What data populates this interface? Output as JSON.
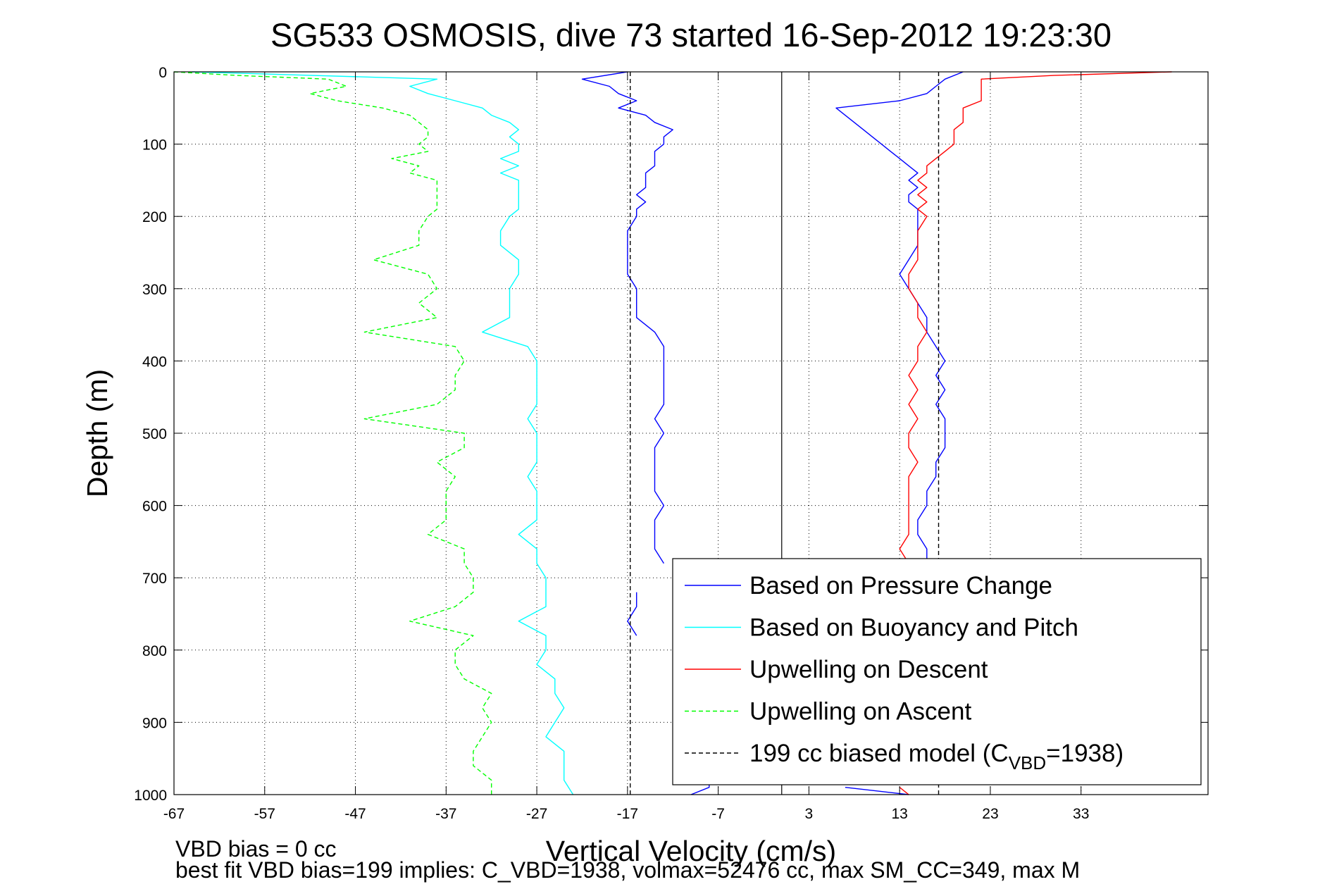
{
  "chart_data": {
    "type": "line",
    "title": "SG533 OSMOSIS, dive 73 started 16-Sep-2012 19:23:30",
    "xlabel": "Vertical Velocity (cm/s)",
    "ylabel": "Depth (m)",
    "xlim": [
      -67,
      47
    ],
    "ylim": [
      0,
      1000
    ],
    "y_reversed": true,
    "grid": true,
    "x_ticks": [
      "-67",
      "-57",
      "-47",
      "-37",
      "-27",
      "-17",
      "-7",
      "3",
      "13",
      "23",
      "33"
    ],
    "y_ticks": [
      "0",
      "100",
      "200",
      "300",
      "400",
      "500",
      "600",
      "700",
      "800",
      "900",
      "1000"
    ],
    "legend_position": "bottom-right",
    "series": [
      {
        "name": "Based on Pressure Change",
        "color": "#0000ff",
        "style": "solid",
        "segments": [
          {
            "depth": [
              0,
              10,
              20,
              30,
              40,
              50,
              60,
              70,
              80,
              90,
              100,
              110,
              120,
              130,
              140,
              150,
              160,
              170,
              180,
              190,
              200,
              220,
              240,
              260,
              280,
              300,
              320,
              340,
              360,
              380,
              400,
              420,
              440,
              460,
              480,
              500,
              520,
              540,
              560,
              580,
              600,
              620,
              640,
              660,
              680
            ],
            "value": [
              -17,
              -22,
              -19,
              -18,
              -16,
              -18,
              -15,
              -14,
              -12,
              -13,
              -13,
              -14,
              -14,
              -14,
              -15,
              -15,
              -15,
              -16,
              -15,
              -16,
              -16,
              -17,
              -17,
              -17,
              -17,
              -16,
              -16,
              -16,
              -14,
              -13,
              -13,
              -13,
              -13,
              -13,
              -14,
              -13,
              -14,
              -14,
              -14,
              -14,
              -13,
              -14,
              -14,
              -14,
              -13
            ]
          },
          {
            "depth": [
              720,
              740,
              760,
              780
            ],
            "value": [
              -16,
              -16,
              -17,
              -16
            ]
          },
          {
            "depth": [
              980,
              990,
              1000
            ],
            "value": [
              -8,
              -8,
              -10
            ]
          },
          {
            "depth": [
              0,
              10,
              20,
              30,
              40,
              50,
              60,
              70,
              80,
              90,
              100,
              110,
              120,
              130,
              140,
              150,
              160,
              170,
              180,
              190,
              200,
              220,
              240,
              260,
              280,
              300,
              320,
              340,
              360,
              380,
              400,
              420,
              440,
              460,
              480,
              500,
              520,
              540,
              560,
              580,
              600,
              620,
              640,
              660,
              680
            ],
            "value": [
              20,
              18,
              17,
              16,
              13,
              6,
              7,
              8,
              9,
              10,
              11,
              12,
              13,
              14,
              15,
              14,
              15,
              14,
              14,
              15,
              15,
              15,
              15,
              14,
              13,
              14,
              15,
              16,
              16,
              17,
              18,
              17,
              18,
              17,
              18,
              18,
              18,
              17,
              17,
              16,
              16,
              15,
              15,
              16,
              16
            ]
          },
          {
            "depth": [
              990,
              1000
            ],
            "value": [
              7,
              14
            ]
          }
        ]
      },
      {
        "name": "Based on Buoyancy and Pitch",
        "color": "#00ffff",
        "style": "solid",
        "segments": [
          {
            "depth": [
              0,
              10,
              20,
              30,
              40,
              50,
              60,
              70,
              80,
              90,
              100,
              110,
              120,
              130,
              140,
              150,
              160,
              170,
              180,
              190,
              200,
              220,
              240,
              260,
              280,
              300,
              320,
              340,
              360,
              380,
              400,
              420,
              440,
              460,
              480,
              500,
              520,
              540,
              560,
              580,
              600,
              620,
              640,
              660,
              680,
              700,
              720,
              740,
              760,
              780,
              800,
              820,
              840,
              860,
              880,
              900,
              920,
              940,
              960,
              980,
              1000
            ],
            "value": [
              -65,
              -38,
              -41,
              -39,
              -36,
              -33,
              -32,
              -30,
              -29,
              -30,
              -29,
              -29,
              -31,
              -29,
              -31,
              -29,
              -29,
              -29,
              -29,
              -29,
              -30,
              -31,
              -31,
              -29,
              -29,
              -30,
              -30,
              -30,
              -33,
              -28,
              -27,
              -27,
              -27,
              -27,
              -28,
              -27,
              -27,
              -27,
              -28,
              -27,
              -27,
              -27,
              -29,
              -27,
              -27,
              -26,
              -26,
              -26,
              -29,
              -26,
              -26,
              -27,
              -25,
              -25,
              -24,
              -25,
              -26,
              -24,
              -24,
              -24,
              -23
            ]
          }
        ]
      },
      {
        "name": "Upwelling on Descent",
        "color": "#ff0000",
        "style": "solid",
        "segments": [
          {
            "depth": [
              0,
              5,
              10,
              20,
              30,
              40,
              50,
              60,
              70,
              80,
              90,
              100,
              110,
              120,
              130,
              140,
              150,
              160,
              170,
              180,
              190,
              200,
              220,
              240,
              260,
              280,
              300,
              320,
              340,
              360,
              380,
              400,
              420,
              440,
              460,
              480,
              500,
              520,
              540,
              560,
              580,
              600,
              620,
              640,
              660,
              680
            ],
            "value": [
              43,
              30,
              22,
              22,
              22,
              22,
              20,
              20,
              20,
              19,
              19,
              19,
              18,
              17,
              16,
              16,
              15,
              16,
              15,
              16,
              15,
              16,
              15,
              15,
              15,
              14,
              14,
              15,
              15,
              16,
              15,
              15,
              14,
              15,
              14,
              15,
              14,
              14,
              15,
              14,
              14,
              14,
              14,
              14,
              13,
              14
            ]
          },
          {
            "depth": [
              990,
              1000
            ],
            "value": [
              13,
              14
            ]
          }
        ]
      },
      {
        "name": "Upwelling on Ascent",
        "color": "#00ff00",
        "style": "dashed",
        "segments": [
          {
            "depth": [
              0,
              5,
              10,
              20,
              30,
              40,
              50,
              60,
              70,
              80,
              90,
              100,
              110,
              120,
              130,
              140,
              150,
              160,
              170,
              180,
              190,
              200,
              220,
              240,
              260,
              280,
              300,
              320,
              340,
              360,
              380,
              400,
              420,
              440,
              460,
              480,
              500,
              520,
              540,
              560,
              580,
              600,
              620,
              640,
              660,
              680,
              700,
              720,
              740,
              760,
              780,
              800,
              820,
              840,
              860,
              880,
              900,
              920,
              940,
              960,
              980,
              1000
            ],
            "value": [
              -67,
              -60,
              -50,
              -48,
              -52,
              -49,
              -44,
              -41,
              -40,
              -39,
              -39,
              -40,
              -39,
              -43,
              -40,
              -41,
              -38,
              -38,
              -38,
              -38,
              -38,
              -39,
              -40,
              -40,
              -45,
              -39,
              -38,
              -40,
              -38,
              -46,
              -36,
              -35,
              -36,
              -36,
              -38,
              -46,
              -35,
              -35,
              -38,
              -36,
              -37,
              -37,
              -37,
              -39,
              -35,
              -35,
              -34,
              -34,
              -36,
              -41,
              -34,
              -36,
              -36,
              -35,
              -32,
              -33,
              -32,
              -33,
              -34,
              -34,
              -32,
              -32
            ]
          }
        ]
      },
      {
        "name": "199 cc biased model (C_VBD=1938)",
        "color": "#000000",
        "style": "dashed",
        "segments": [
          {
            "depth": [
              0,
              1000
            ],
            "value": [
              -16.7,
              -16.7
            ]
          },
          {
            "depth": [
              0,
              1000
            ],
            "value": [
              17.3,
              17.3
            ]
          }
        ]
      }
    ],
    "reference_line": {
      "value": 0,
      "color": "#000000"
    },
    "legend": [
      {
        "name": "Based on Pressure Change",
        "color": "#0000ff",
        "style": "solid"
      },
      {
        "name": "Based on Buoyancy and Pitch",
        "color": "#00ffff",
        "style": "solid"
      },
      {
        "name": "Upwelling on Descent",
        "color": "#ff0000",
        "style": "solid"
      },
      {
        "name": "Upwelling on Ascent",
        "color": "#00ff00",
        "style": "dashed"
      },
      {
        "name": "199 cc biased model (C",
        "sub": "VBD",
        "tail": "=1938)",
        "color": "#000000",
        "style": "dashed"
      }
    ],
    "annotations": [
      "VBD bias = 0 cc",
      "best fit VBD bias=199 implies: C_VBD=1938, volmax=52476 cc, max SM_CC=349, max M"
    ]
  }
}
